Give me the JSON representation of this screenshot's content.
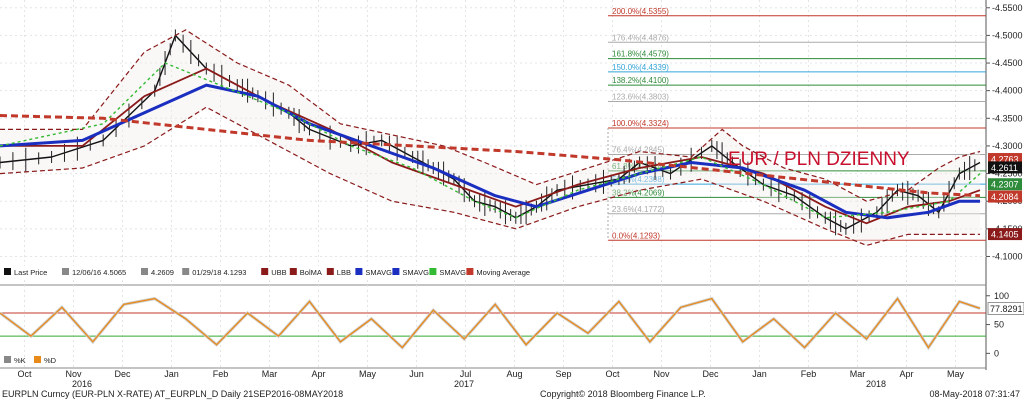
{
  "chart_data": [
    {
      "type": "line",
      "title": "EUR / PLN DZIENNY",
      "x_months": [
        "Oct",
        "Nov",
        "Dec",
        "Jan",
        "Feb",
        "Mar",
        "Apr",
        "May",
        "Jun",
        "Jul",
        "Aug",
        "Sep",
        "Oct",
        "Nov",
        "Dec",
        "Jan",
        "Feb",
        "Mar",
        "Apr",
        "May"
      ],
      "year_labels": [
        "2016",
        "2017",
        "2018"
      ],
      "y_ticks": [
        "4.5500",
        "4.5000",
        "4.4500",
        "4.4000",
        "4.3500",
        "4.3000",
        "4.2500",
        "4.2000",
        "4.1500",
        "4.1000"
      ],
      "ylim": [
        4.09,
        4.555
      ],
      "fib_levels": [
        {
          "label": "200.0%(4.5355)",
          "value": 4.5355,
          "color": "#c0392b"
        },
        {
          "label": "176.4%(4.4876)",
          "value": 4.4876,
          "color": "#aaaaaa"
        },
        {
          "label": "161.8%(4.4579)",
          "value": 4.4579,
          "color": "#2e8b3a"
        },
        {
          "label": "150.0%(4.4339)",
          "value": 4.4339,
          "color": "#34a4d8"
        },
        {
          "label": "138.2%(4.4100)",
          "value": 4.41,
          "color": "#2e8b3a"
        },
        {
          "label": "123.6%(4.3803)",
          "value": 4.3803,
          "color": "#aaaaaa"
        },
        {
          "label": "100.0%(4.3324)",
          "value": 4.3324,
          "color": "#c0392b"
        },
        {
          "label": "76.4%(4.2845)",
          "value": 4.2845,
          "color": "#aaaaaa"
        },
        {
          "label": "61.8%(4.2548)",
          "value": 4.2548,
          "color": "#2e8b3a"
        },
        {
          "label": "50.0%(4.2308)",
          "value": 4.2308,
          "color": "#34a4d8"
        },
        {
          "label": "38.2%(4.2069)",
          "value": 4.2069,
          "color": "#2e8b3a"
        },
        {
          "label": "23.6%(4.1772)",
          "value": 4.1772,
          "color": "#aaaaaa"
        },
        {
          "label": "0.0%(4.1293)",
          "value": 4.1293,
          "color": "#c0392b"
        }
      ],
      "price_tags": [
        {
          "label": "4.2763",
          "value": 4.2763,
          "bg": "#c0392b"
        },
        {
          "label": "4.2611",
          "value": 4.2611,
          "bg": "#111111"
        },
        {
          "label": "4.2307",
          "value": 4.2307,
          "bg": "#2e8b3a"
        },
        {
          "label": "4.2084",
          "value": 4.2084,
          "bg": "#c0392b"
        },
        {
          "label": "4.1405",
          "value": 4.1405,
          "bg": "#8b1a1a"
        }
      ],
      "legend": [
        {
          "label": "Last Price",
          "color": "#111111"
        },
        {
          "label": "12/06/16 4.5065",
          "color": "#888888"
        },
        {
          "label": "4.2609",
          "color": "#888888"
        },
        {
          "label": "01/29/18 4.1293",
          "color": "#888888"
        },
        {
          "label": "UBB",
          "color": "#8b1a1a"
        },
        {
          "label": "BolMA",
          "color": "#8b1a1a"
        },
        {
          "label": "LBB",
          "color": "#8b1a1a"
        },
        {
          "label": "SMAVG",
          "color": "#1a2fbf"
        },
        {
          "label": "SMAVG",
          "color": "#1a2fbf"
        },
        {
          "label": "SMAVG",
          "color": "#33bb33"
        },
        {
          "label": "Moving Average",
          "color": "#c0392b"
        }
      ],
      "series": [
        {
          "name": "Last Price",
          "color": "#111111",
          "values": [
            [
              0,
              4.27
            ],
            [
              5,
              4.28
            ],
            [
              10,
              4.31
            ],
            [
              15,
              4.4
            ],
            [
              17,
              4.5
            ],
            [
              20,
              4.44
            ],
            [
              23,
              4.41
            ],
            [
              25,
              4.39
            ],
            [
              28,
              4.36
            ],
            [
              30,
              4.33
            ],
            [
              34,
              4.3
            ],
            [
              37,
              4.31
            ],
            [
              40,
              4.28
            ],
            [
              42,
              4.26
            ],
            [
              44,
              4.24
            ],
            [
              46,
              4.2
            ],
            [
              48,
              4.19
            ],
            [
              50,
              4.17
            ],
            [
              52,
              4.19
            ],
            [
              54,
              4.22
            ],
            [
              57,
              4.23
            ],
            [
              60,
              4.24
            ],
            [
              62,
              4.27
            ],
            [
              65,
              4.25
            ],
            [
              69,
              4.3
            ],
            [
              71,
              4.27
            ],
            [
              74,
              4.23
            ],
            [
              77,
              4.21
            ],
            [
              80,
              4.17
            ],
            [
              82,
              4.15
            ],
            [
              85,
              4.18
            ],
            [
              87,
              4.22
            ],
            [
              89,
              4.21
            ],
            [
              91,
              4.18
            ],
            [
              93,
              4.25
            ],
            [
              95,
              4.27
            ]
          ]
        },
        {
          "name": "UBB",
          "color": "#8b1a1a",
          "values": [
            [
              0,
              4.33
            ],
            [
              8,
              4.33
            ],
            [
              14,
              4.47
            ],
            [
              18,
              4.51
            ],
            [
              23,
              4.45
            ],
            [
              28,
              4.41
            ],
            [
              33,
              4.34
            ],
            [
              38,
              4.32
            ],
            [
              43,
              4.3
            ],
            [
              47,
              4.27
            ],
            [
              52,
              4.23
            ],
            [
              57,
              4.26
            ],
            [
              62,
              4.29
            ],
            [
              67,
              4.28
            ],
            [
              70,
              4.33
            ],
            [
              72,
              4.3
            ],
            [
              76,
              4.26
            ],
            [
              80,
              4.24
            ],
            [
              84,
              4.2
            ],
            [
              88,
              4.22
            ],
            [
              91,
              4.26
            ],
            [
              93,
              4.28
            ],
            [
              95,
              4.29
            ]
          ]
        },
        {
          "name": "BolMA",
          "color": "#8b1a1a",
          "values": [
            [
              0,
              4.3
            ],
            [
              8,
              4.3
            ],
            [
              14,
              4.39
            ],
            [
              20,
              4.44
            ],
            [
              26,
              4.38
            ],
            [
              32,
              4.33
            ],
            [
              38,
              4.27
            ],
            [
              44,
              4.23
            ],
            [
              50,
              4.19
            ],
            [
              56,
              4.23
            ],
            [
              62,
              4.26
            ],
            [
              68,
              4.28
            ],
            [
              74,
              4.25
            ],
            [
              80,
              4.19
            ],
            [
              84,
              4.16
            ],
            [
              88,
              4.19
            ],
            [
              92,
              4.2
            ],
            [
              95,
              4.22
            ]
          ]
        },
        {
          "name": "LBB",
          "color": "#8b1a1a",
          "values": [
            [
              0,
              4.25
            ],
            [
              8,
              4.26
            ],
            [
              14,
              4.3
            ],
            [
              20,
              4.37
            ],
            [
              26,
              4.31
            ],
            [
              32,
              4.25
            ],
            [
              38,
              4.2
            ],
            [
              44,
              4.18
            ],
            [
              50,
              4.15
            ],
            [
              56,
              4.19
            ],
            [
              62,
              4.22
            ],
            [
              68,
              4.24
            ],
            [
              74,
              4.2
            ],
            [
              80,
              4.15
            ],
            [
              84,
              4.12
            ],
            [
              88,
              4.14
            ],
            [
              92,
              4.14
            ],
            [
              95,
              4.14
            ]
          ]
        },
        {
          "name": "SMAVG",
          "color": "#1a2fbf",
          "values": [
            [
              0,
              4.3
            ],
            [
              8,
              4.31
            ],
            [
              14,
              4.36
            ],
            [
              20,
              4.41
            ],
            [
              25,
              4.39
            ],
            [
              30,
              4.34
            ],
            [
              36,
              4.3
            ],
            [
              42,
              4.26
            ],
            [
              48,
              4.21
            ],
            [
              52,
              4.19
            ],
            [
              57,
              4.22
            ],
            [
              62,
              4.25
            ],
            [
              67,
              4.27
            ],
            [
              72,
              4.26
            ],
            [
              78,
              4.22
            ],
            [
              82,
              4.18
            ],
            [
              86,
              4.17
            ],
            [
              90,
              4.18
            ],
            [
              93,
              4.2
            ],
            [
              95,
              4.2
            ]
          ]
        },
        {
          "name": "SMAVG",
          "color": "#33bb33",
          "values": [
            [
              0,
              4.3
            ],
            [
              10,
              4.34
            ],
            [
              16,
              4.45
            ],
            [
              20,
              4.42
            ],
            [
              28,
              4.36
            ],
            [
              34,
              4.3
            ],
            [
              40,
              4.26
            ],
            [
              46,
              4.2
            ],
            [
              50,
              4.17
            ],
            [
              56,
              4.22
            ],
            [
              62,
              4.25
            ],
            [
              68,
              4.28
            ],
            [
              74,
              4.23
            ],
            [
              80,
              4.17
            ],
            [
              86,
              4.18
            ],
            [
              92,
              4.2
            ],
            [
              95,
              4.25
            ]
          ]
        },
        {
          "name": "Moving Average",
          "color": "#c0392b",
          "values": [
            [
              0,
              4.355
            ],
            [
              10,
              4.35
            ],
            [
              20,
              4.33
            ],
            [
              30,
              4.31
            ],
            [
              40,
              4.3
            ],
            [
              50,
              4.29
            ],
            [
              60,
              4.275
            ],
            [
              70,
              4.255
            ],
            [
              80,
              4.235
            ],
            [
              90,
              4.215
            ],
            [
              95,
              4.21
            ]
          ]
        }
      ]
    },
    {
      "type": "line",
      "y_ticks": [
        "100",
        "50",
        "0"
      ],
      "ylim": [
        -15,
        110
      ],
      "extra_tick": "77.8291",
      "ref_lines": [
        70,
        30
      ],
      "legend": [
        {
          "label": "%K",
          "color": "#888888"
        },
        {
          "label": "%D",
          "color": "#e88a1a"
        }
      ],
      "series": [
        {
          "name": "%D",
          "color": "#e88a1a",
          "values": [
            [
              0,
              70
            ],
            [
              3,
              30
            ],
            [
              6,
              80
            ],
            [
              9,
              20
            ],
            [
              12,
              85
            ],
            [
              15,
              95
            ],
            [
              18,
              60
            ],
            [
              21,
              15
            ],
            [
              24,
              70
            ],
            [
              27,
              30
            ],
            [
              30,
              90
            ],
            [
              33,
              20
            ],
            [
              36,
              60
            ],
            [
              39,
              10
            ],
            [
              42,
              75
            ],
            [
              45,
              25
            ],
            [
              48,
              85
            ],
            [
              51,
              15
            ],
            [
              54,
              70
            ],
            [
              57,
              35
            ],
            [
              60,
              90
            ],
            [
              63,
              20
            ],
            [
              66,
              80
            ],
            [
              69,
              95
            ],
            [
              72,
              20
            ],
            [
              75,
              60
            ],
            [
              78,
              10
            ],
            [
              81,
              70
            ],
            [
              84,
              25
            ],
            [
              87,
              95
            ],
            [
              90,
              10
            ],
            [
              93,
              90
            ],
            [
              95,
              78
            ]
          ]
        }
      ]
    }
  ],
  "footer": {
    "left": "EURPLN Curncy (EUR-PLN X-RATE) AT_EURPLN_D  Daily 21SEP2016-08MAY2018",
    "center": "Copyright© 2018 Bloomberg Finance L.P.",
    "right": "08-May-2018 07:31:47"
  }
}
